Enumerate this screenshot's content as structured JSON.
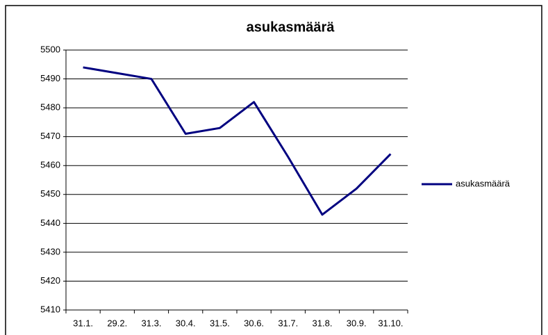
{
  "chart_data": {
    "type": "line",
    "title": "asukasmäärä",
    "categories": [
      "31.1.",
      "29.2.",
      "31.3.",
      "30.4.",
      "31.5.",
      "30.6.",
      "31.7.",
      "31.8.",
      "30.9.",
      "31.10."
    ],
    "series": [
      {
        "name": "asukasmäärä",
        "color": "#000080",
        "values": [
          5494,
          5492,
          5490,
          5471,
          5473,
          5482,
          5463,
          5443,
          5452,
          5464
        ]
      }
    ],
    "ylim": [
      5410,
      5500
    ],
    "yticks": [
      5410,
      5420,
      5430,
      5440,
      5450,
      5460,
      5470,
      5480,
      5490,
      5500
    ],
    "grid": true,
    "legend": "right"
  }
}
